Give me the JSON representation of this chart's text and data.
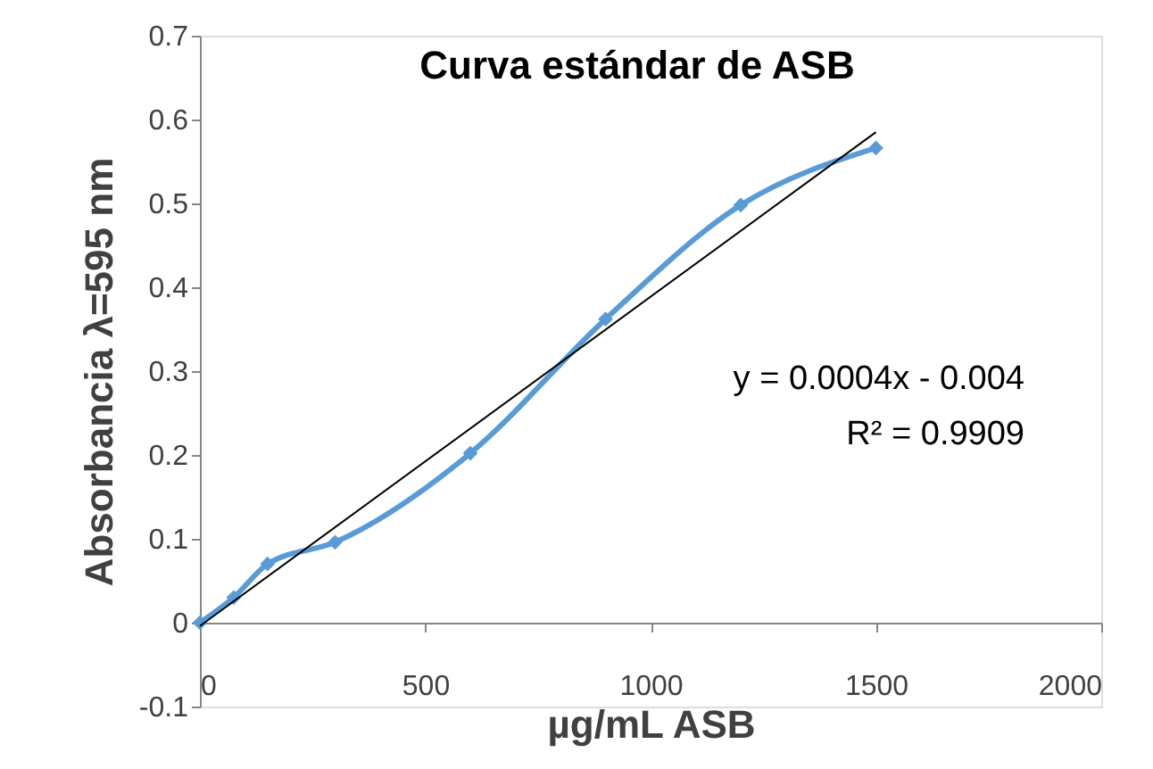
{
  "chart_data": {
    "type": "line",
    "title": "Curva estándar de ASB",
    "xlabel": "µg/mL ASB",
    "ylabel": "Absorbancia λ=595 nm",
    "xlim": [
      0,
      2000
    ],
    "xticks": [
      0,
      500,
      1000,
      1500,
      2000
    ],
    "ylim": [
      -0.1,
      0.7
    ],
    "yticks": [
      -0.1,
      0,
      0.1,
      0.2,
      0.3,
      0.4,
      0.5,
      0.6,
      0.7
    ],
    "marker": "diamond",
    "series": [
      {
        "color": "#5b9bd5",
        "x": [
          0,
          75,
          150,
          300,
          600,
          900,
          1200,
          1500
        ],
        "values": [
          0,
          0.03,
          0.07,
          0.096,
          0.202,
          0.362,
          0.498,
          0.566
        ]
      },
      {
        "type": "line",
        "color": "#000000",
        "marker": "none",
        "x": [
          0,
          1500
        ],
        "values": [
          -0.004,
          0.585
        ]
      }
    ],
    "annotations": [
      "y = 0.0004x - 0.004",
      "R² = 0.9909"
    ]
  }
}
